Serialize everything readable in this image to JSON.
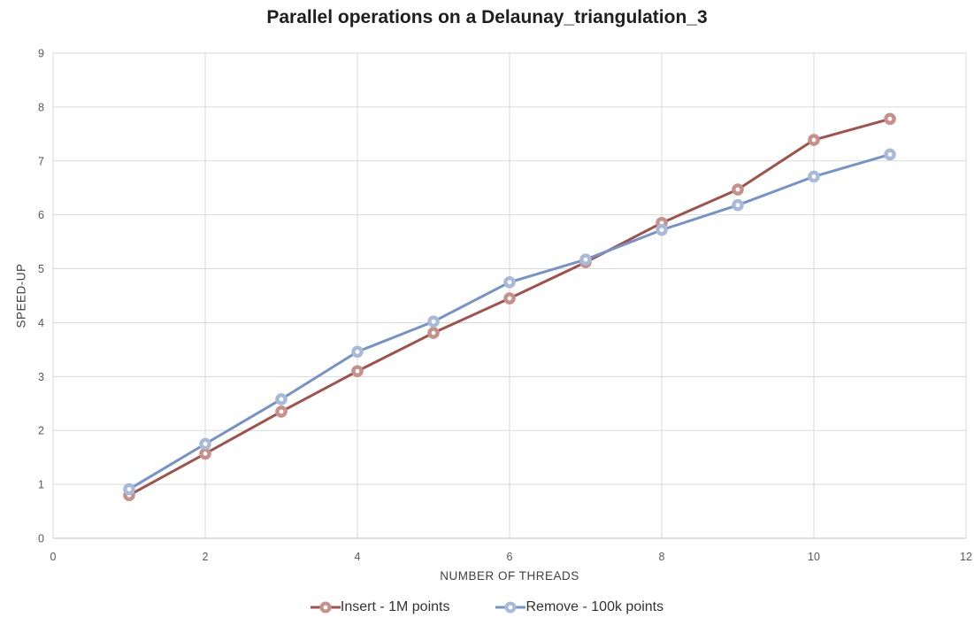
{
  "chart_data": {
    "type": "line",
    "title": "Parallel operations on a Delaunay_triangulation_3",
    "xlabel": "NUMBER OF THREADS",
    "ylabel": "SPEED-UP",
    "x": [
      1,
      2,
      3,
      4,
      5,
      6,
      7,
      8,
      9,
      10,
      11
    ],
    "series": [
      {
        "name": "Insert - 1M points",
        "values": [
          0.8,
          1.57,
          2.35,
          3.1,
          3.81,
          4.45,
          5.12,
          5.85,
          6.47,
          7.39,
          7.78
        ],
        "line_color": "#A0524D",
        "marker_color": "#C6908B"
      },
      {
        "name": "Remove - 100k points",
        "values": [
          0.91,
          1.75,
          2.58,
          3.46,
          4.02,
          4.75,
          5.17,
          5.72,
          6.18,
          6.71,
          7.12
        ],
        "line_color": "#7693C8",
        "marker_color": "#A9BAD9"
      }
    ],
    "xlim": [
      0,
      12
    ],
    "ylim": [
      0,
      9
    ],
    "x_ticks": [
      0,
      2,
      4,
      6,
      8,
      10,
      12
    ],
    "y_ticks": [
      0,
      1,
      2,
      3,
      4,
      5,
      6,
      7,
      8,
      9
    ],
    "grid": true,
    "legend_position": "bottom",
    "gridline_color": "#D9D9D9",
    "axis_line_color": "#BFBFBF",
    "tick_label_color": "#595959"
  }
}
